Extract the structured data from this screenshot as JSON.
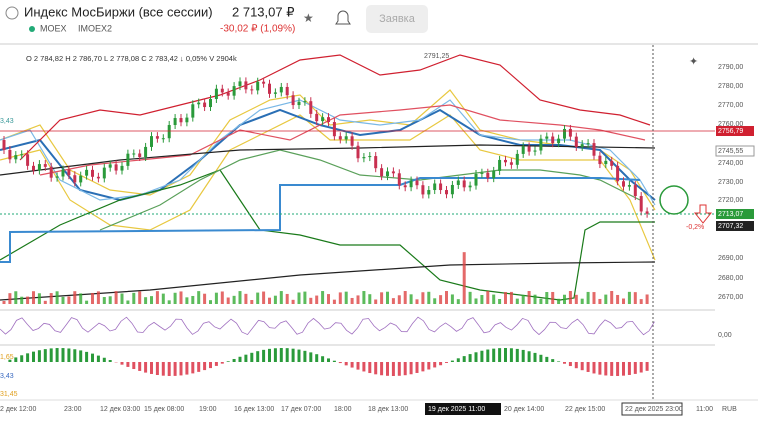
{
  "header": {
    "title": "Индекс МосБиржи (все сессии)",
    "price": "2 713,07 ₽",
    "change": "-30,02 ₽ (1,09%)",
    "exchange": "MOEX",
    "ticker": "IMOEX2",
    "order_button": "Заявка"
  },
  "ohlc": "O 2 784,82 H 2 786,70 L 2 778,08 C 2 783,42 ↓ 0,05% V 2904k",
  "chart": {
    "top_label": "2791,25",
    "change_marker": "-0,2%",
    "price_axis": [
      "2790,00",
      "2780,00",
      "2770,00",
      "2760,00",
      "2756,79",
      "2745,55",
      "2740,00",
      "2730,00",
      "2720,00",
      "2713,07",
      "2707,32",
      "2690,00",
      "2680,00",
      "2670,00",
      "0,00"
    ],
    "left_labels": [
      "3,43",
      "1,65",
      "3,43",
      "31,45"
    ],
    "time_axis": [
      "2 дек 12:00",
      "23:00",
      "12 дек 03:00",
      "15 дек 08:00",
      "19:00",
      "16 дек 13:00",
      "17 дек 07:00",
      "18:00",
      "18 дек 13:00",
      "19 дек 2025 11:00",
      "20 дек 14:00",
      "22 дек 15:00",
      "22 дек 2025 23:00",
      "11:00",
      "RUB"
    ]
  }
}
